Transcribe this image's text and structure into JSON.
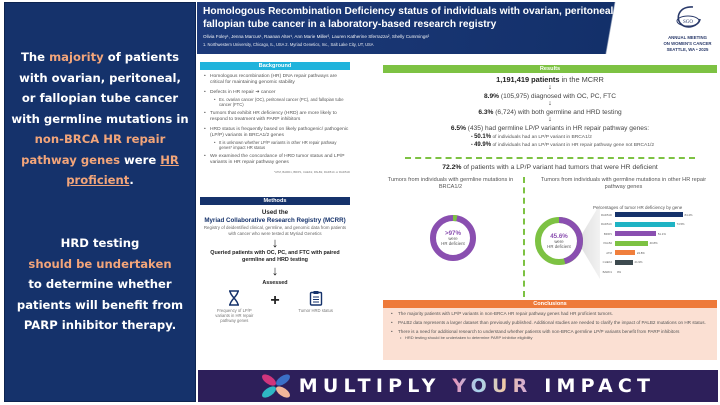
{
  "left_panel": {
    "block1": {
      "p1": "The ",
      "h1": "majority",
      "p2": " of patients with ovarian, peritoneal, or fallopian tube cancer with germline mutations in ",
      "h2": "non-BRCA HR repair pathway genes",
      "p3": " were ",
      "h3": "HR proficient",
      "p4": "."
    },
    "block2": {
      "p1": "HRD testing",
      "h1": "should be undertaken",
      "p2": "to determine whether patients will benefit from PARP inhibitor therapy."
    }
  },
  "header": {
    "title": "Homologous Recombination Deficiency status of individuals with ovarian, peritoneal or fallopian tube cancer in a laboratory-based research registry",
    "authors": "Olivia Foley¹, Jenna Marcus¹, Raanan Alter¹, Ann Marie Miller², Lauren Katherine Sferrazza², Shelly Cummings²",
    "affiliations": "1. Northwestern University, Chicago, IL, USA     2. Myriad Genetics, Inc., Salt Lake City, UT, USA"
  },
  "logo": {
    "badge": "SGO",
    "line1": "ANNUAL MEETING",
    "line2": "ON WOMEN'S CANCER",
    "line3": "SEATTLE, WA • 2025"
  },
  "background": {
    "heading": "Background",
    "bullets": [
      {
        "text": "Homologous recombination (HR) DNA repair pathways are critical for maintaining genomic stability"
      },
      {
        "text": "Defects in HR repair ➜ cancer",
        "sub": [
          "Ex. ovarian cancer (OC), peritoneal cancer (PC), and fallopian tube cancer (FTC)"
        ]
      },
      {
        "text": "Tumors that exhibit HR deficiency (HRD) are more likely to respond to treatment with PARP inhibitors"
      },
      {
        "text": "HRD status is frequently based on likely pathogenic/ pathogenic (LP/P) variants in BRCA1/2 genes",
        "sub": [
          "It is unknown whether LP/P variants in other HR repair pathway genes* impact HR status"
        ]
      },
      {
        "text": "We examined the concordance of HRD tumor status and LP/P variants in HR repair pathway genes"
      }
    ],
    "footnote": "*ATM, BARD1, BRIP1, CHEK2, PALB2, RAD51C or RAD51D"
  },
  "methods": {
    "heading": "Methods",
    "used_the": "Used the",
    "registry": "Myriad Collaborative Research Registry (MCRR)",
    "registry_desc": "Registry of deidentified clinical, germline, and genomic data from patients with cancer who were tested at Myriad Genetics",
    "query": "Queried patients with OC, PC, and FTC with paired germline and HRD testing",
    "assessed": "Assessed",
    "assess_left": "Frequency of LP/P variants in HR repair pathway genes",
    "assess_right": "Tumor HRD status",
    "plus": "+"
  },
  "results": {
    "heading": "Results",
    "step1_bold": "1,191,419 patients",
    "step1_rest": " in the MCRR",
    "step2_bold": "8.9%",
    "step2_rest": " (105,975) diagnosed with OC, PC, FTC",
    "step3_bold": "6.3%",
    "step3_rest": " (6,724) with both germline and HRD testing",
    "step4_bold": "6.5%",
    "step4_rest": " (435) had germline LP/P variants in HR repair pathway genes:",
    "sub1_bold": "50.1%",
    "sub1_rest": " of individuals had an LP/P variant in BRCA1/2",
    "sub2_bold": "49.9%",
    "sub2_rest": " of individuals had an LP/P variant in HR repair pathway gene not BRCA1/2",
    "summary_bold": "72.2%",
    "summary_rest": " of patients with a LP/P variant had tumors that were HR deficient",
    "left_caption": "Tumors from individuals with germline mutations in BRCA1/2",
    "right_caption": "Tumors from individuals with germline mutations in other HR repair pathway genes",
    "donut_left": {
      "value": ">97%",
      "line1": "were",
      "line2": "HR deficient"
    },
    "donut_right": {
      "value": "45.6%",
      "line1": "were",
      "line2": "HR deficient"
    },
    "arrow": "↓"
  },
  "chart_data": [
    {
      "type": "pie",
      "title": "Tumors from individuals with germline mutations in BRCA1/2",
      "categories": [
        "HR deficient",
        "HR proficient"
      ],
      "values": [
        97,
        3
      ],
      "colors": [
        "#8a4fb0",
        "#7dc243"
      ]
    },
    {
      "type": "pie",
      "title": "Tumors from individuals with germline mutations in other HR repair pathway genes",
      "categories": [
        "HR deficient",
        "HR proficient"
      ],
      "values": [
        45.6,
        54.4
      ],
      "colors": [
        "#8a4fb0",
        "#7dc243"
      ]
    },
    {
      "type": "bar",
      "orientation": "horizontal",
      "title": "Percentages of tumor HR deficiency by gene",
      "categories": [
        "RAD51D",
        "RAD51C",
        "BRIP1",
        "PALB2",
        "ATM",
        "CHEK2",
        "BARD1"
      ],
      "values": [
        84.4,
        74.5,
        51.1,
        40.8,
        24.8,
        21.9,
        0
      ],
      "labels": [
        "84.4%",
        "74.5%",
        "51.1%",
        "40.8%",
        "24.8%",
        "21.9%",
        "0%"
      ],
      "colors": [
        "#15326b",
        "#1fb3c4",
        "#8a4fb0",
        "#7dc243",
        "#f07f3c",
        "#3d4a4f",
        "#9aa0a6"
      ],
      "xlim": [
        0,
        100
      ]
    }
  ],
  "conclusions": {
    "heading": "Conclusions",
    "bullets": [
      {
        "text": "The majority patients with LP/P variants in non-BRCA HR repair pathway genes had HR proficient tumors."
      },
      {
        "text": "PALB2 data represents a larger dataset than previously published. Additional studies are needed to clarify the impact of PALB2 mutations on HR status."
      },
      {
        "text": "There is a need for additional research to understand whether patients with non-BRCA germline LP/P variants benefit from PARP inhibitors",
        "sub": [
          "HRD testing should be undertaken to determine PARP inhibitor eligibility"
        ]
      }
    ]
  },
  "footer": {
    "w1": "MULTIPLY ",
    "w2": "YOUR",
    "w3": " IMPACT"
  }
}
